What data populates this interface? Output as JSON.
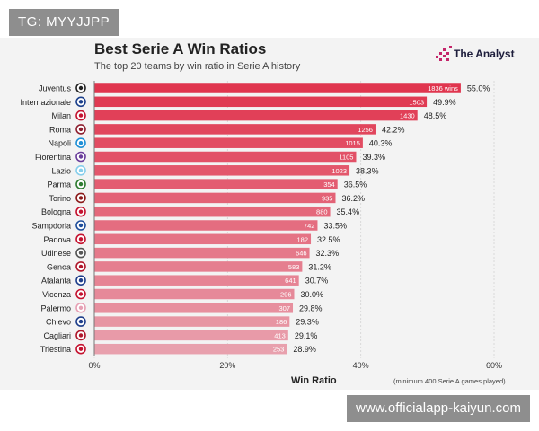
{
  "watermarks": {
    "top_left": "TG: MYYJJPP",
    "bottom_right": "www.officialapp-kaiyun.com"
  },
  "brand": {
    "name": "The Analyst",
    "logo_icon": "analyst-logo-icon",
    "logo_color": "#c4256a"
  },
  "chart_data": {
    "type": "bar",
    "orientation": "horizontal",
    "title": "Best Serie A Win Ratios",
    "subtitle": "The top 20 teams by win ratio in Serie A history",
    "xlabel": "Win Ratio",
    "ylabel": "",
    "footnote": "(minimum 400 Serie A games played)",
    "xlim": [
      0,
      60
    ],
    "xticks": [
      0,
      20,
      40,
      60
    ],
    "xtick_labels": [
      "0%",
      "20%",
      "40%",
      "60%"
    ],
    "grid": true,
    "bar_color_top": "#e0354e",
    "bar_color_bottom": "#e8a0ad",
    "categories": [
      "Juventus",
      "Internazionale",
      "Milan",
      "Roma",
      "Napoli",
      "Fiorentina",
      "Lazio",
      "Parma",
      "Torino",
      "Bologna",
      "Sampdoria",
      "Padova",
      "Udinese",
      "Genoa",
      "Atalanta",
      "Vicenza",
      "Palermo",
      "Chievo",
      "Cagliari",
      "Triestina"
    ],
    "values": [
      55.0,
      49.9,
      48.5,
      42.2,
      40.3,
      39.3,
      38.3,
      36.5,
      36.2,
      35.4,
      33.5,
      32.5,
      32.3,
      31.2,
      30.7,
      30.0,
      29.8,
      29.3,
      29.1,
      28.9
    ],
    "value_labels": [
      "55.0%",
      "49.9%",
      "48.5%",
      "42.2%",
      "40.3%",
      "39.3%",
      "38.3%",
      "36.5%",
      "36.2%",
      "35.4%",
      "33.5%",
      "32.5%",
      "32.3%",
      "31.2%",
      "30.7%",
      "30.0%",
      "29.8%",
      "29.3%",
      "29.1%",
      "28.9%"
    ],
    "wins_labels": [
      "1836 wins",
      "1503",
      "1430",
      "1256",
      "1015",
      "1105",
      "1023",
      "354",
      "935",
      "880",
      "742",
      "182",
      "646",
      "583",
      "641",
      "296",
      "307",
      "186",
      "413",
      "253"
    ],
    "badge_colors": [
      "#222222",
      "#1b3f8b",
      "#c4122f",
      "#8e1f2f",
      "#1f8fd6",
      "#6a3d9a",
      "#87ceeb",
      "#2f7d32",
      "#8b1a1a",
      "#c4122f",
      "#1f4e9b",
      "#c4122f",
      "#555555",
      "#b0182c",
      "#1f3f8b",
      "#c4122f",
      "#e6a0b4",
      "#1f3f8b",
      "#b0182c",
      "#c4122f"
    ]
  }
}
